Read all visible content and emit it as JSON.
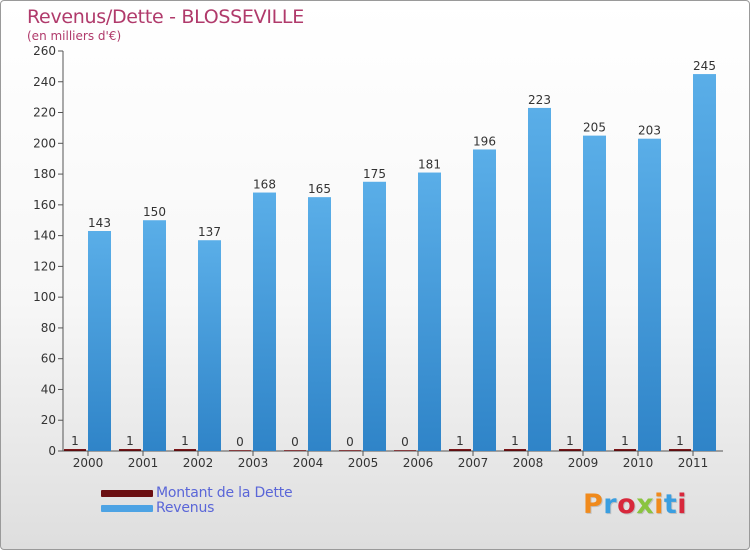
{
  "title": "Revenus/Dette - BLOSSEVILLE",
  "subtitle": "(en milliers d'€)",
  "brand": {
    "name": "Proxiti",
    "colors": [
      "#f08a1c",
      "#3a9ee0",
      "#d8283c",
      "#8ac43f",
      "#f08a1c",
      "#3a9ee0",
      "#d8283c"
    ]
  },
  "colors": {
    "debt": "#6b0f12",
    "revenue": "#4da3e4",
    "revenue_dark": "#2277bb"
  },
  "chart_data": {
    "type": "bar",
    "title": "Revenus/Dette - BLOSSEVILLE",
    "ylabel": "(en milliers d'€)",
    "xlabel": "",
    "ylim": [
      0,
      260
    ],
    "yticks": [
      0,
      20,
      40,
      60,
      80,
      100,
      120,
      140,
      160,
      180,
      200,
      220,
      240,
      260
    ],
    "grid": false,
    "legend_position": "bottom-left",
    "categories": [
      "2000",
      "2001",
      "2002",
      "2003",
      "2004",
      "2005",
      "2006",
      "2007",
      "2008",
      "2009",
      "2010",
      "2011"
    ],
    "series": [
      {
        "name": "Montant de la Dette",
        "values": [
          1,
          1,
          1,
          0,
          0,
          0,
          0,
          1,
          1,
          1,
          1,
          1
        ]
      },
      {
        "name": "Revenus",
        "values": [
          143,
          150,
          137,
          168,
          165,
          175,
          181,
          196,
          223,
          205,
          203,
          245
        ]
      }
    ]
  }
}
